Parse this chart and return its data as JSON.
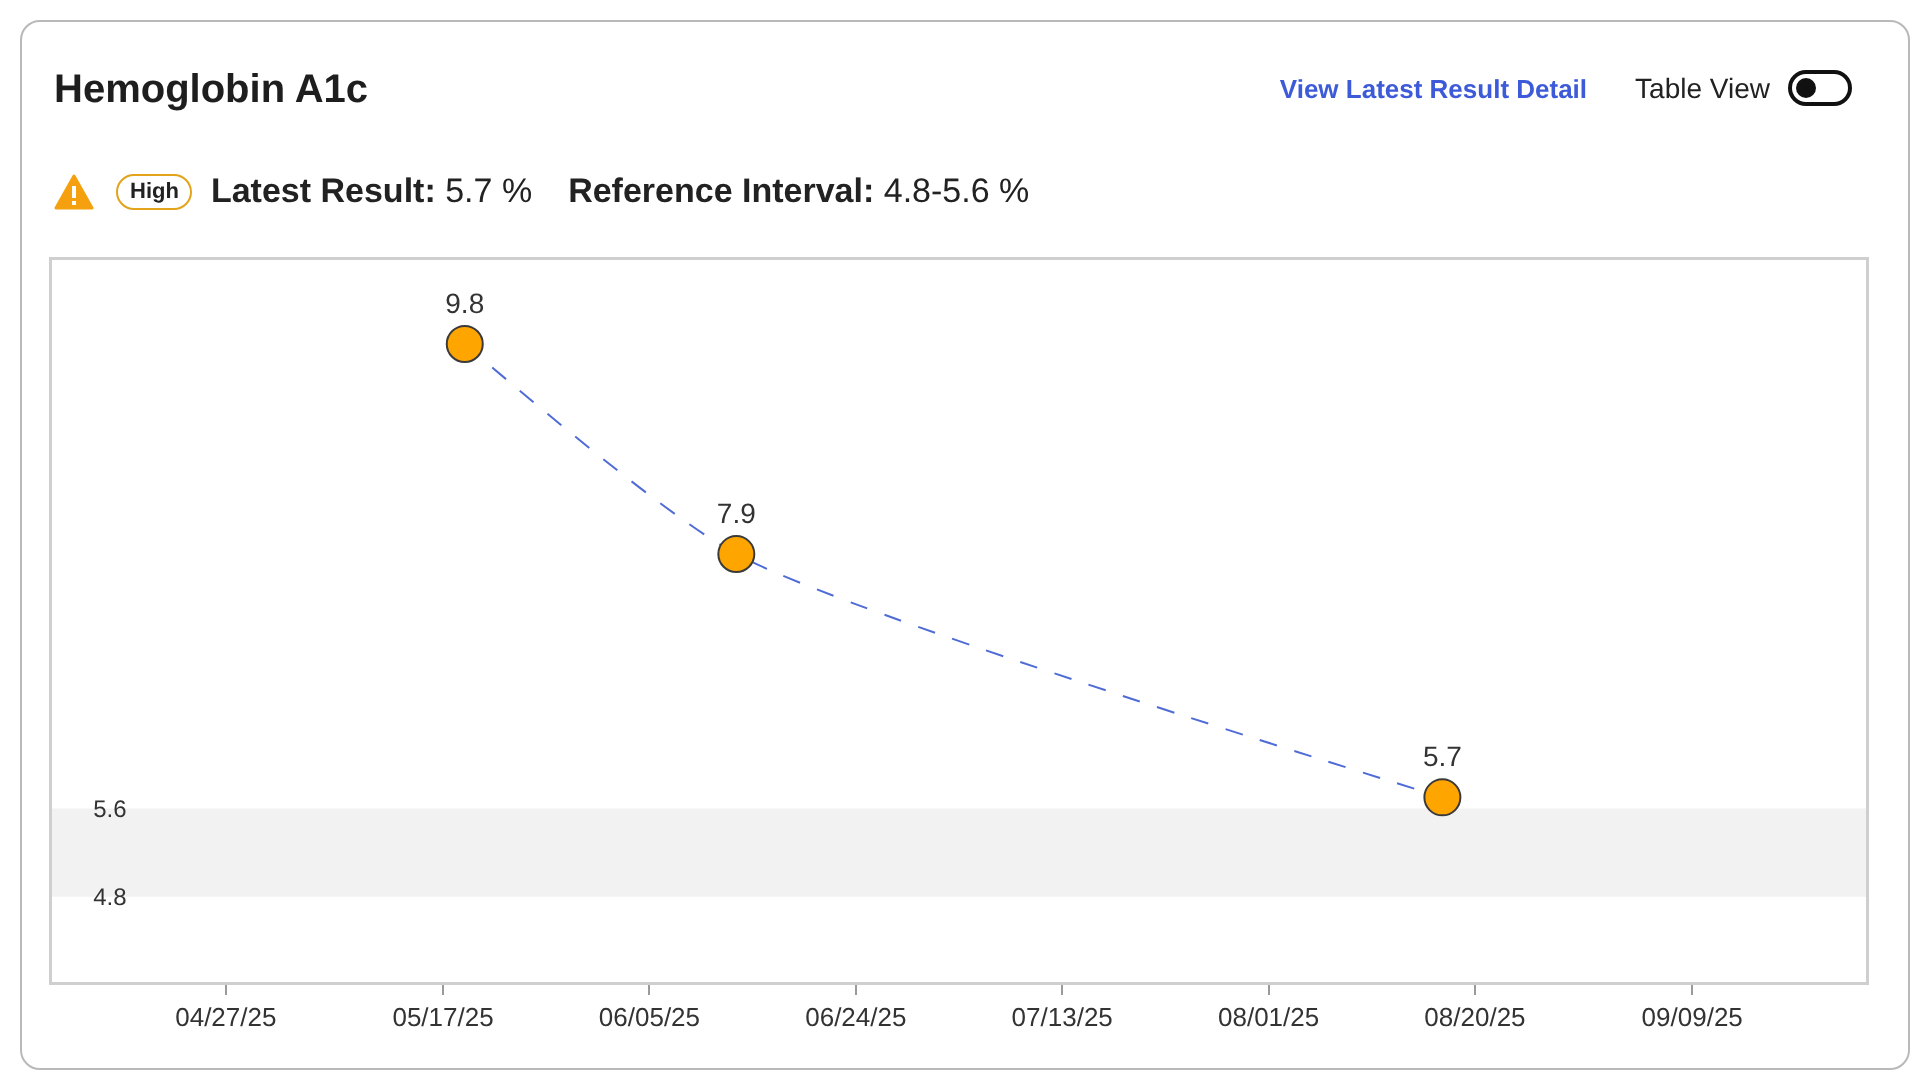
{
  "chart_data": {
    "type": "line",
    "title": "Hemoglobin A1c",
    "annotations": [
      "View Latest Result Detail",
      "Table View",
      "High",
      "Latest Result: 5.7 %",
      "Reference Interval: 4.8-5.6 %"
    ],
    "x": [
      "2025-05-19",
      "2025-06-13",
      "2025-08-17"
    ],
    "series": [
      {
        "color": "#4f6bd6",
        "colors": [
          "#ffa500",
          "#ffa500",
          "#ffa500"
        ],
        "values": [
          9.8,
          7.9,
          5.7
        ]
      }
    ],
    "xlim": [
      "2025-04-11",
      "2025-09-25"
    ],
    "xticks": [
      {
        "value": "2025-04-27",
        "label": "04/27/25"
      },
      {
        "value": "2025-05-17",
        "label": "05/17/25"
      },
      {
        "value": "2025-06-05",
        "label": "06/05/25"
      },
      {
        "value": "2025-06-24",
        "label": "06/24/25"
      },
      {
        "value": "2025-07-13",
        "label": "07/13/25"
      },
      {
        "value": "2025-08-01",
        "label": "08/01/25"
      },
      {
        "value": "2025-08-20",
        "label": "08/20/25"
      },
      {
        "value": "2025-09-09",
        "label": "09/09/25"
      }
    ],
    "ylim": [
      4.03,
      10.56
    ],
    "yticks": [
      4.8,
      5.6
    ],
    "bands": [
      {
        "axis": "y",
        "from": 4.8,
        "to": 5.6,
        "color": "#f2f2f2"
      }
    ],
    "data_labels": true,
    "marker": "circle",
    "line_style": "dashed"
  }
}
